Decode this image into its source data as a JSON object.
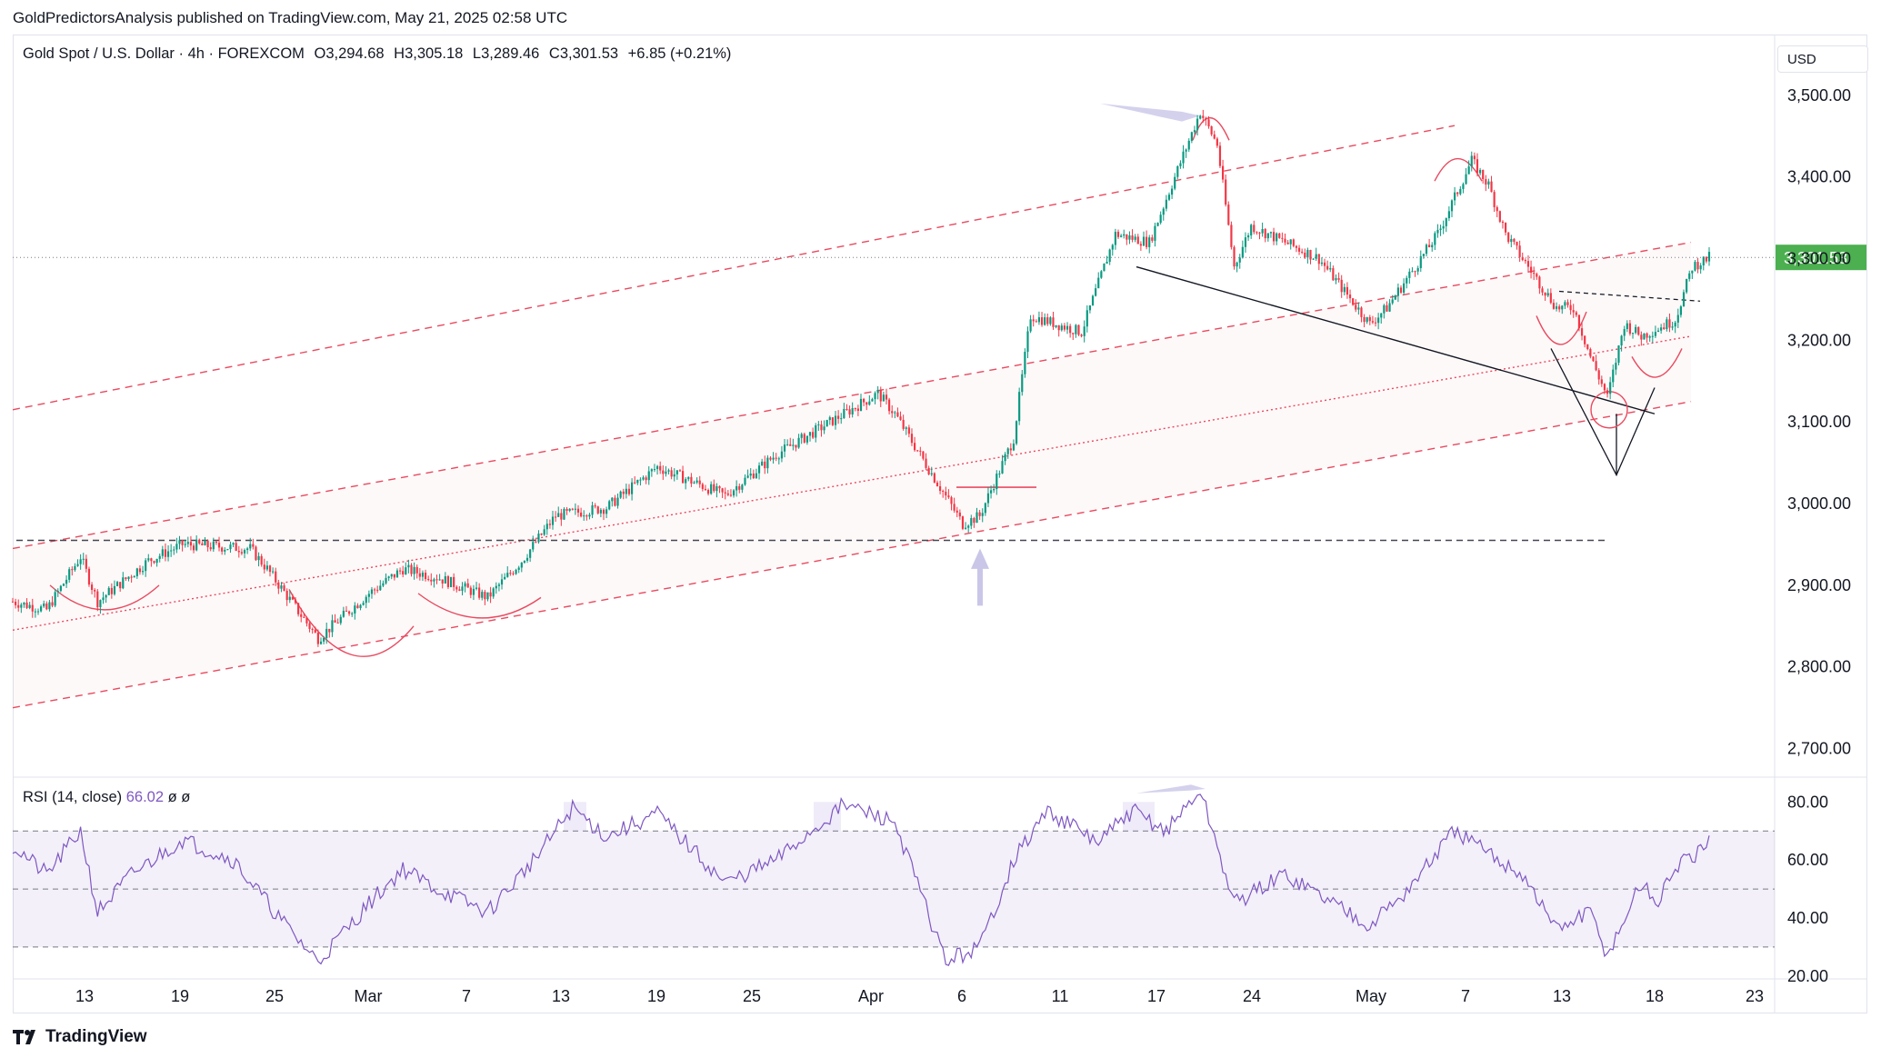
{
  "publisher": "GoldPredictorsAnalysis published on TradingView.com, May 21, 2025 02:58 UTC",
  "legend": {
    "symbol": "Gold Spot / U.S. Dollar · 4h · FOREXCOM",
    "open": "O3,294.68",
    "high": "H3,305.18",
    "low": "L3,289.46",
    "close": "C3,301.53",
    "change": "+6.85 (+0.21%)"
  },
  "currency": "USD",
  "rsi_legend": {
    "label": "RSI (14, close)",
    "value": "66.02",
    "extra1": "ø",
    "extra2": "ø"
  },
  "brand": "TradingView",
  "colors": {
    "up": "#089981",
    "down": "#f23645",
    "channel": "#e84a5f",
    "rsi": "#7e57c2",
    "last_price": "#4caf50"
  },
  "chart_data": [
    {
      "type": "candlestick",
      "title": "Gold Spot / U.S. Dollar · 4h · FOREXCOM",
      "y_ticks": [
        "3,500.00",
        "3,400.00",
        "3,300.00",
        "3,200.00",
        "3,100.00",
        "3,000.00",
        "2,900.00",
        "2,800.00",
        "2,700.00"
      ],
      "ylim": [
        2665,
        3550
      ],
      "x_ticks": [
        "13",
        "19",
        "25",
        "Mar",
        "7",
        "13",
        "19",
        "25",
        "Apr",
        "6",
        "11",
        "17",
        "24",
        "May",
        "7",
        "13",
        "18",
        "23"
      ],
      "last_price_label": "3,301.53",
      "last_price": 3301.53,
      "path_keypoints": [
        {
          "x": "Feb 10",
          "y": 2880
        },
        {
          "x": "Feb 12",
          "y": 2870
        },
        {
          "x": "Feb 14",
          "y": 2935
        },
        {
          "x": "Feb 15",
          "y": 2880
        },
        {
          "x": "Feb 18",
          "y": 2930
        },
        {
          "x": "Feb 20",
          "y": 2950
        },
        {
          "x": "Feb 24",
          "y": 2945
        },
        {
          "x": "Feb 25",
          "y": 2920
        },
        {
          "x": "Feb 28",
          "y": 2835
        },
        {
          "x": "Mar 3",
          "y": 2890
        },
        {
          "x": "Mar 5",
          "y": 2920
        },
        {
          "x": "Mar 7",
          "y": 2910
        },
        {
          "x": "Mar 10",
          "y": 2885
        },
        {
          "x": "Mar 12",
          "y": 2930
        },
        {
          "x": "Mar 14",
          "y": 2985
        },
        {
          "x": "Mar 17",
          "y": 2995
        },
        {
          "x": "Mar 20",
          "y": 3045
        },
        {
          "x": "Mar 24",
          "y": 3010
        },
        {
          "x": "Mar 27",
          "y": 3060
        },
        {
          "x": "Apr 2",
          "y": 3135
        },
        {
          "x": "Apr 3",
          "y": 3110
        },
        {
          "x": "Apr 7",
          "y": 2975
        },
        {
          "x": "Apr 8",
          "y": 2985
        },
        {
          "x": "Apr 10",
          "y": 3080
        },
        {
          "x": "Apr 11",
          "y": 3230
        },
        {
          "x": "Apr 14",
          "y": 3210
        },
        {
          "x": "Apr 16",
          "y": 3330
        },
        {
          "x": "Apr 18",
          "y": 3320
        },
        {
          "x": "Apr 21",
          "y": 3480
        },
        {
          "x": "Apr 22",
          "y": 3440
        },
        {
          "x": "Apr 23",
          "y": 3290
        },
        {
          "x": "Apr 24",
          "y": 3340
        },
        {
          "x": "Apr 28",
          "y": 3300
        },
        {
          "x": "May 1",
          "y": 3220
        },
        {
          "x": "May 2",
          "y": 3240
        },
        {
          "x": "May 5",
          "y": 3330
        },
        {
          "x": "May 7",
          "y": 3420
        },
        {
          "x": "May 8",
          "y": 3390
        },
        {
          "x": "May 9",
          "y": 3330
        },
        {
          "x": "May 12",
          "y": 3240
        },
        {
          "x": "May 13",
          "y": 3240
        },
        {
          "x": "May 14",
          "y": 3180
        },
        {
          "x": "May 15",
          "y": 3130
        },
        {
          "x": "May 16",
          "y": 3220
        },
        {
          "x": "May 17",
          "y": 3205
        },
        {
          "x": "May 19",
          "y": 3225
        },
        {
          "x": "May 20",
          "y": 3290
        },
        {
          "x": "May 21",
          "y": 3301.53
        }
      ],
      "horizontal_levels": [
        2955,
        2955
      ]
    },
    {
      "type": "line",
      "title": "RSI (14, close)",
      "y_ticks": [
        "80.00",
        "60.00",
        "40.00",
        "20.00"
      ],
      "ylim": [
        19,
        87
      ],
      "bands": [
        70,
        50,
        30
      ],
      "last_value": 66.02,
      "path_keypoints": [
        {
          "x": "Feb 10",
          "y": 65
        },
        {
          "x": "Feb 12",
          "y": 55
        },
        {
          "x": "Feb 14",
          "y": 70
        },
        {
          "x": "Feb 15",
          "y": 42
        },
        {
          "x": "Feb 17",
          "y": 55
        },
        {
          "x": "Feb 20",
          "y": 67
        },
        {
          "x": "Feb 23",
          "y": 60
        },
        {
          "x": "Feb 26",
          "y": 38
        },
        {
          "x": "Feb 28",
          "y": 25
        },
        {
          "x": "Mar 3",
          "y": 45
        },
        {
          "x": "Mar 5",
          "y": 57
        },
        {
          "x": "Mar 7",
          "y": 50
        },
        {
          "x": "Mar 10",
          "y": 42
        },
        {
          "x": "Mar 13",
          "y": 62
        },
        {
          "x": "Mar 15",
          "y": 78
        },
        {
          "x": "Mar 17",
          "y": 68
        },
        {
          "x": "Mar 20",
          "y": 76
        },
        {
          "x": "Mar 24",
          "y": 52
        },
        {
          "x": "Mar 27",
          "y": 60
        },
        {
          "x": "Mar 31",
          "y": 79
        },
        {
          "x": "Apr 3",
          "y": 73
        },
        {
          "x": "Apr 6",
          "y": 25
        },
        {
          "x": "Apr 8",
          "y": 30
        },
        {
          "x": "Apr 10",
          "y": 60
        },
        {
          "x": "Apr 12",
          "y": 77
        },
        {
          "x": "Apr 15",
          "y": 66
        },
        {
          "x": "Apr 17",
          "y": 77
        },
        {
          "x": "Apr 19",
          "y": 70
        },
        {
          "x": "Apr 21",
          "y": 84
        },
        {
          "x": "Apr 23",
          "y": 45
        },
        {
          "x": "Apr 26",
          "y": 55
        },
        {
          "x": "May 1",
          "y": 38
        },
        {
          "x": "May 3",
          "y": 48
        },
        {
          "x": "May 6",
          "y": 70
        },
        {
          "x": "May 8",
          "y": 62
        },
        {
          "x": "May 10",
          "y": 55
        },
        {
          "x": "May 12",
          "y": 36
        },
        {
          "x": "May 14",
          "y": 42
        },
        {
          "x": "May 15",
          "y": 27
        },
        {
          "x": "May 17",
          "y": 52
        },
        {
          "x": "May 18",
          "y": 45
        },
        {
          "x": "May 19",
          "y": 58
        },
        {
          "x": "May 20",
          "y": 60
        },
        {
          "x": "May 21",
          "y": 66.02
        }
      ]
    }
  ]
}
